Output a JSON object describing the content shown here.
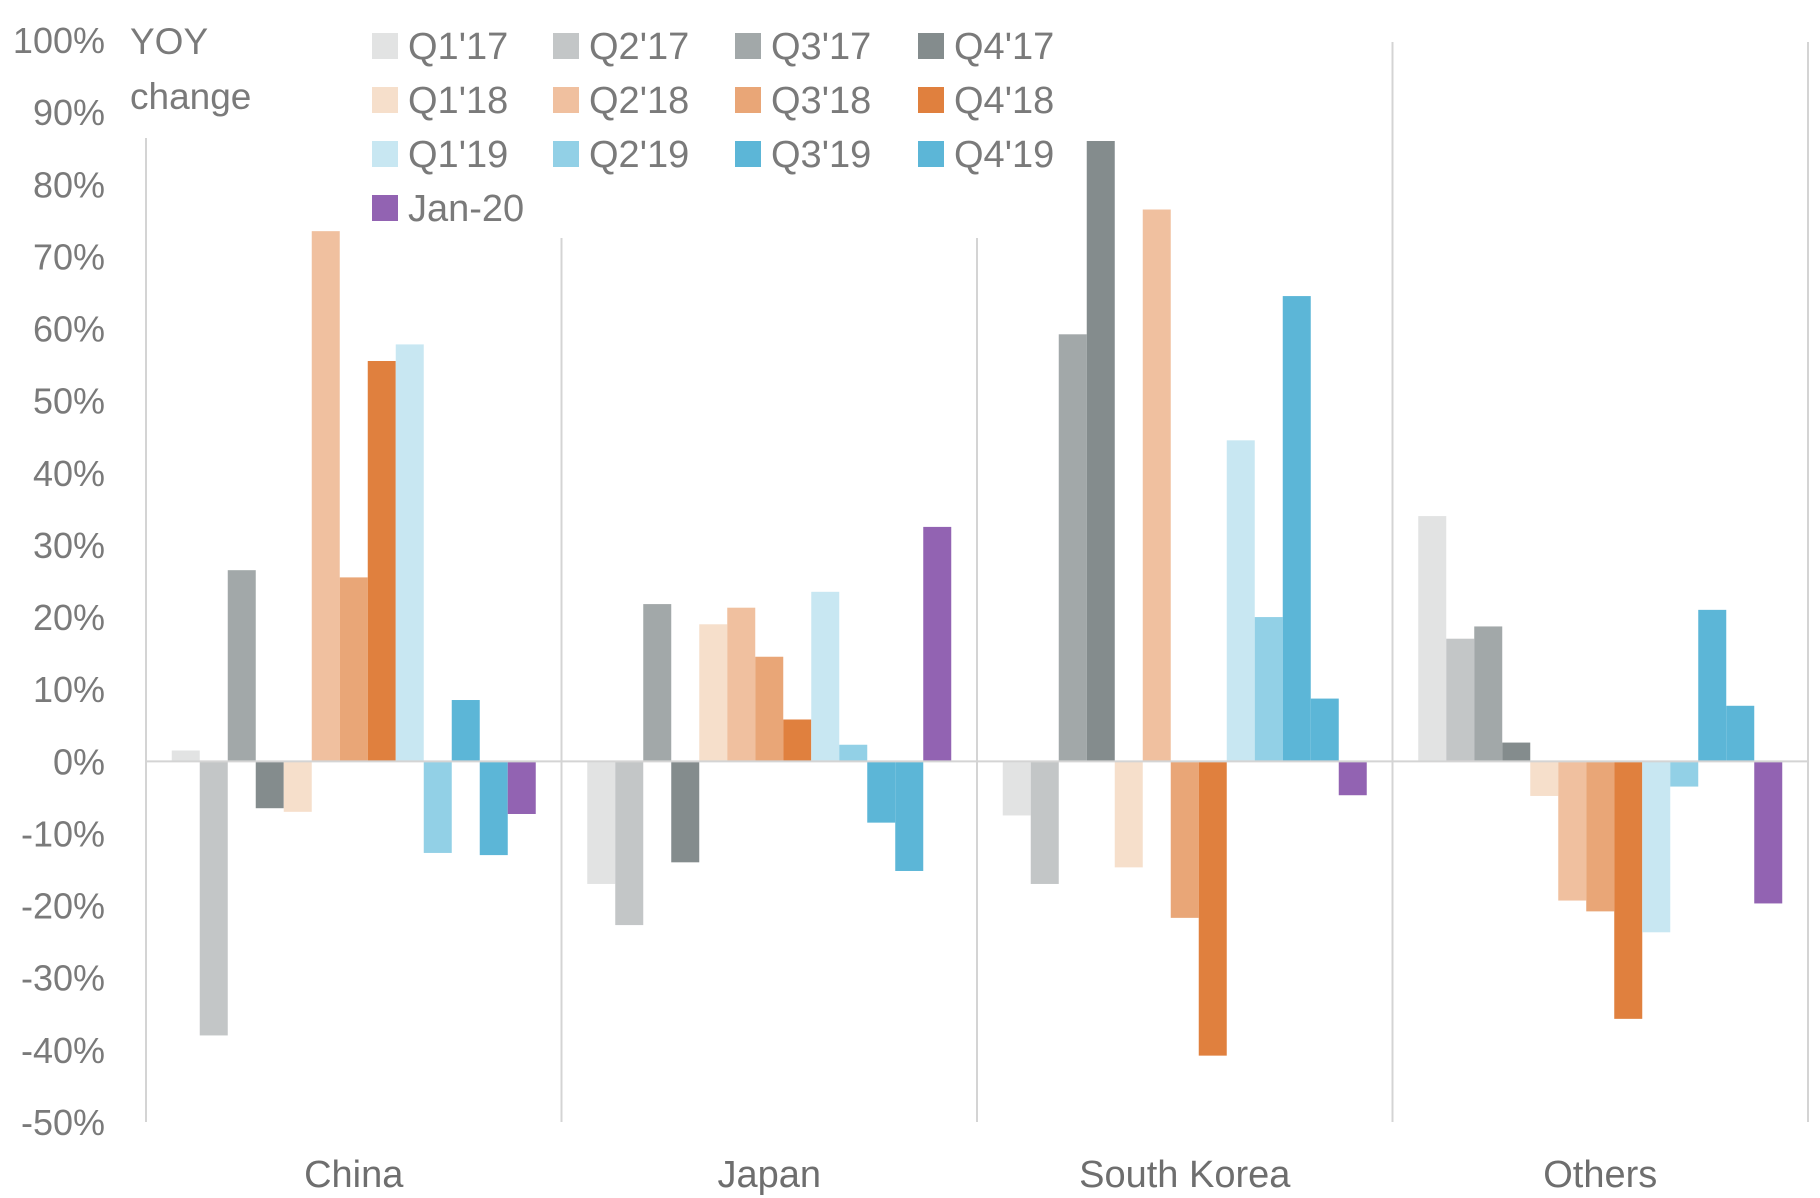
{
  "chart_data": {
    "type": "bar",
    "annotation": [
      "YOY",
      "change"
    ],
    "categories": [
      "China",
      "Japan",
      "South Korea",
      "Others"
    ],
    "ylim": [
      -50,
      100
    ],
    "yticks": [
      100,
      90,
      80,
      70,
      60,
      50,
      40,
      30,
      20,
      10,
      0,
      -10,
      -20,
      -30,
      -40,
      -50
    ],
    "ytick_labels": [
      "100%",
      "90%",
      "80%",
      "70%",
      "60%",
      "50%",
      "40%",
      "30%",
      "20%",
      "10%",
      "0%",
      "-10%",
      "-20%",
      "-30%",
      "-40%",
      "-50%"
    ],
    "legend_position": "top",
    "grid": false,
    "series": [
      {
        "name": "Q1'17",
        "color": "#e2e3e3",
        "values": [
          1.5,
          -17,
          -7.5,
          34
        ]
      },
      {
        "name": "Q2'17",
        "color": "#c3c6c7",
        "values": [
          -38,
          -22.7,
          -17,
          17
        ]
      },
      {
        "name": "Q3'17",
        "color": "#a2a8a9",
        "values": [
          26.5,
          21.8,
          59.2,
          18.7
        ]
      },
      {
        "name": "Q4'17",
        "color": "#848c8d",
        "values": [
          -6.5,
          -14,
          86,
          2.6
        ]
      },
      {
        "name": "Q1'18",
        "color": "#f6dfcb",
        "values": [
          -7,
          19,
          -14.7,
          -4.8
        ]
      },
      {
        "name": "Q2'18",
        "color": "#f0c09f",
        "values": [
          73.5,
          21.3,
          76.5,
          -19.3
        ]
      },
      {
        "name": "Q3'18",
        "color": "#e9a677",
        "values": [
          25.5,
          14.5,
          -21.7,
          -20.8
        ]
      },
      {
        "name": "Q4'18",
        "color": "#e0803e",
        "values": [
          55.5,
          5.8,
          -40.8,
          -35.7
        ]
      },
      {
        "name": "Q1'19",
        "color": "#c8e7f2",
        "values": [
          57.8,
          23.5,
          44.5,
          -23.7
        ]
      },
      {
        "name": "Q2'19",
        "color": "#92d0e6",
        "values": [
          -12.7,
          2.3,
          20,
          -3.5
        ]
      },
      {
        "name": "Q3'19",
        "color": "#5cb6d7",
        "values": [
          8.5,
          -8.5,
          64.5,
          21
        ]
      },
      {
        "name": "Q4'19",
        "color": "#5cb6d7",
        "values": [
          -13,
          -15.2,
          8.7,
          7.7
        ]
      },
      {
        "name": "Jan-20",
        "color": "#9263b2",
        "values": [
          -7.3,
          32.5,
          -4.7,
          -19.7
        ]
      }
    ]
  }
}
